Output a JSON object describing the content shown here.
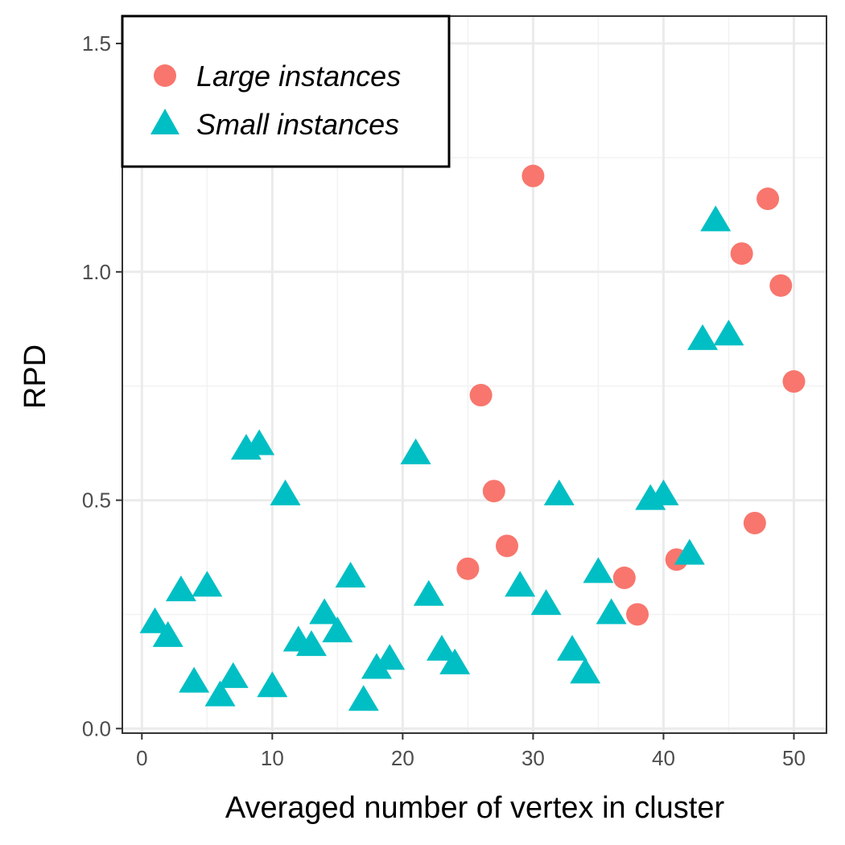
{
  "chart_data": {
    "type": "scatter",
    "title": "",
    "xlabel": "Averaged number of vertex in cluster",
    "ylabel": "RPD",
    "xlim": [
      -1.5,
      52.5
    ],
    "ylim": [
      -0.01,
      1.56
    ],
    "grid": true,
    "x_ticks": [
      0,
      10,
      20,
      30,
      40,
      50
    ],
    "x_tick_labels": [
      "0",
      "10",
      "20",
      "30",
      "40",
      "50"
    ],
    "y_ticks": [
      0.0,
      0.5,
      1.0,
      1.5
    ],
    "y_tick_labels": [
      "0.0",
      "0.5",
      "1.0",
      "1.5"
    ],
    "legend_position": "top-left",
    "series": [
      {
        "name": "Large instances",
        "marker": "circle",
        "color": "#F8766D",
        "points": [
          {
            "x": 25,
            "y": 0.35
          },
          {
            "x": 26,
            "y": 0.73
          },
          {
            "x": 27,
            "y": 0.52
          },
          {
            "x": 28,
            "y": 0.4
          },
          {
            "x": 30,
            "y": 1.21
          },
          {
            "x": 37,
            "y": 0.33
          },
          {
            "x": 38,
            "y": 0.25
          },
          {
            "x": 41,
            "y": 0.37
          },
          {
            "x": 46,
            "y": 1.04
          },
          {
            "x": 47,
            "y": 0.45
          },
          {
            "x": 48,
            "y": 1.16
          },
          {
            "x": 49,
            "y": 0.97
          },
          {
            "x": 50,
            "y": 0.76
          }
        ]
      },
      {
        "name": "Small instances",
        "marker": "triangle",
        "color": "#00BFC4",
        "points": [
          {
            "x": 1,
            "y": 0.23
          },
          {
            "x": 2,
            "y": 0.2
          },
          {
            "x": 3,
            "y": 0.3
          },
          {
            "x": 4,
            "y": 0.1
          },
          {
            "x": 5,
            "y": 0.31
          },
          {
            "x": 6,
            "y": 0.07
          },
          {
            "x": 7,
            "y": 0.11
          },
          {
            "x": 8,
            "y": 0.61
          },
          {
            "x": 9,
            "y": 0.62
          },
          {
            "x": 10,
            "y": 0.09
          },
          {
            "x": 11,
            "y": 0.51
          },
          {
            "x": 12,
            "y": 0.19
          },
          {
            "x": 13,
            "y": 0.18
          },
          {
            "x": 14,
            "y": 0.25
          },
          {
            "x": 15,
            "y": 0.21
          },
          {
            "x": 16,
            "y": 0.33
          },
          {
            "x": 17,
            "y": 0.06
          },
          {
            "x": 18,
            "y": 0.13
          },
          {
            "x": 19,
            "y": 0.15
          },
          {
            "x": 21,
            "y": 0.6
          },
          {
            "x": 22,
            "y": 0.29
          },
          {
            "x": 23,
            "y": 0.17
          },
          {
            "x": 24,
            "y": 0.14
          },
          {
            "x": 29,
            "y": 0.31
          },
          {
            "x": 31,
            "y": 0.27
          },
          {
            "x": 32,
            "y": 0.51
          },
          {
            "x": 33,
            "y": 0.17
          },
          {
            "x": 34,
            "y": 0.12
          },
          {
            "x": 35,
            "y": 0.34
          },
          {
            "x": 36,
            "y": 0.25
          },
          {
            "x": 39,
            "y": 0.5
          },
          {
            "x": 40,
            "y": 0.51
          },
          {
            "x": 42,
            "y": 0.38
          },
          {
            "x": 43,
            "y": 0.85
          },
          {
            "x": 44,
            "y": 1.11
          },
          {
            "x": 45,
            "y": 0.86
          }
        ]
      }
    ]
  }
}
